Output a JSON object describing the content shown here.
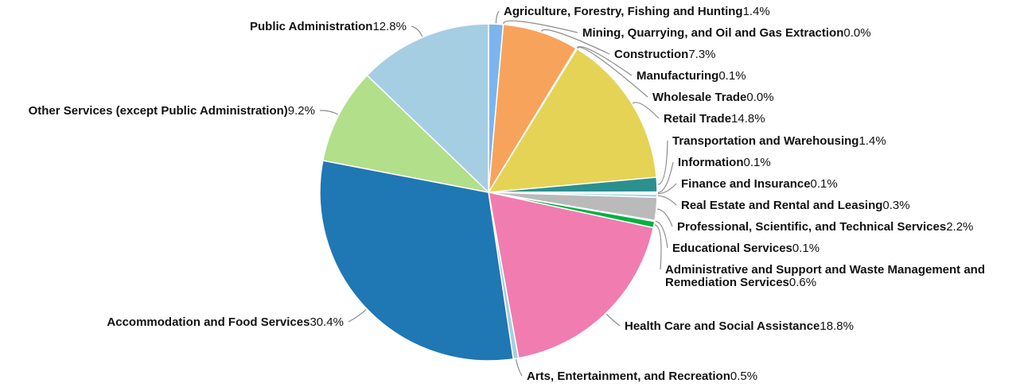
{
  "chart_data": {
    "type": "pie",
    "title": "",
    "slices": [
      {
        "name": "Agriculture, Forestry, Fishing and Hunting",
        "value": 1.4,
        "label": "1.4%",
        "color": "#7cb5ec"
      },
      {
        "name": "Mining, Quarrying, and Oil and Gas Extraction",
        "value": 0.0,
        "label": "0.0%",
        "color": "#ff9f40"
      },
      {
        "name": "Construction",
        "value": 7.3,
        "label": "7.3%",
        "color": "#f7a35c"
      },
      {
        "name": "Manufacturing",
        "value": 0.1,
        "label": "0.1%",
        "color": "#8cd17d"
      },
      {
        "name": "Wholesale Trade",
        "value": 0.0,
        "label": "0.0%",
        "color": "#b6992d"
      },
      {
        "name": "Retail Trade",
        "value": 14.8,
        "label": "14.8%",
        "color": "#e4d354"
      },
      {
        "name": "Transportation and Warehousing",
        "value": 1.4,
        "label": "1.4%",
        "color": "#2b908f"
      },
      {
        "name": "Information",
        "value": 0.1,
        "label": "0.1%",
        "color": "#499894"
      },
      {
        "name": "Finance and Insurance",
        "value": 0.1,
        "label": "0.1%",
        "color": "#17becf"
      },
      {
        "name": "Real Estate and Rental and Leasing",
        "value": 0.3,
        "label": "0.3%",
        "color": "#9edae5"
      },
      {
        "name": "Professional, Scientific, and Technical Services",
        "value": 2.2,
        "label": "2.2%",
        "color": "#bababa"
      },
      {
        "name": "Educational Services",
        "value": 0.1,
        "label": "0.1%",
        "color": "#79706e"
      },
      {
        "name": "Administrative and Support and Waste Management and Remediation Services",
        "value": 0.6,
        "label": "0.6%",
        "color": "#00b140",
        "label_lines": [
          "Administrative and Support and Waste Management and",
          "Remediation Services"
        ]
      },
      {
        "name": "Health Care and Social Assistance",
        "value": 18.8,
        "label": "18.8%",
        "color": "#f17cb0"
      },
      {
        "name": "Arts, Entertainment, and Recreation",
        "value": 0.5,
        "label": "0.5%",
        "color": "#a6cee3"
      },
      {
        "name": "Accommodation and Food Services",
        "value": 30.4,
        "label": "30.4%",
        "color": "#1f77b4"
      },
      {
        "name": "Other Services (except Public Administration)",
        "value": 9.2,
        "label": "9.2%",
        "color": "#b2df8a"
      },
      {
        "name": "Public Administration",
        "value": 12.8,
        "label": "12.8%",
        "color": "#a6cee3"
      }
    ]
  }
}
